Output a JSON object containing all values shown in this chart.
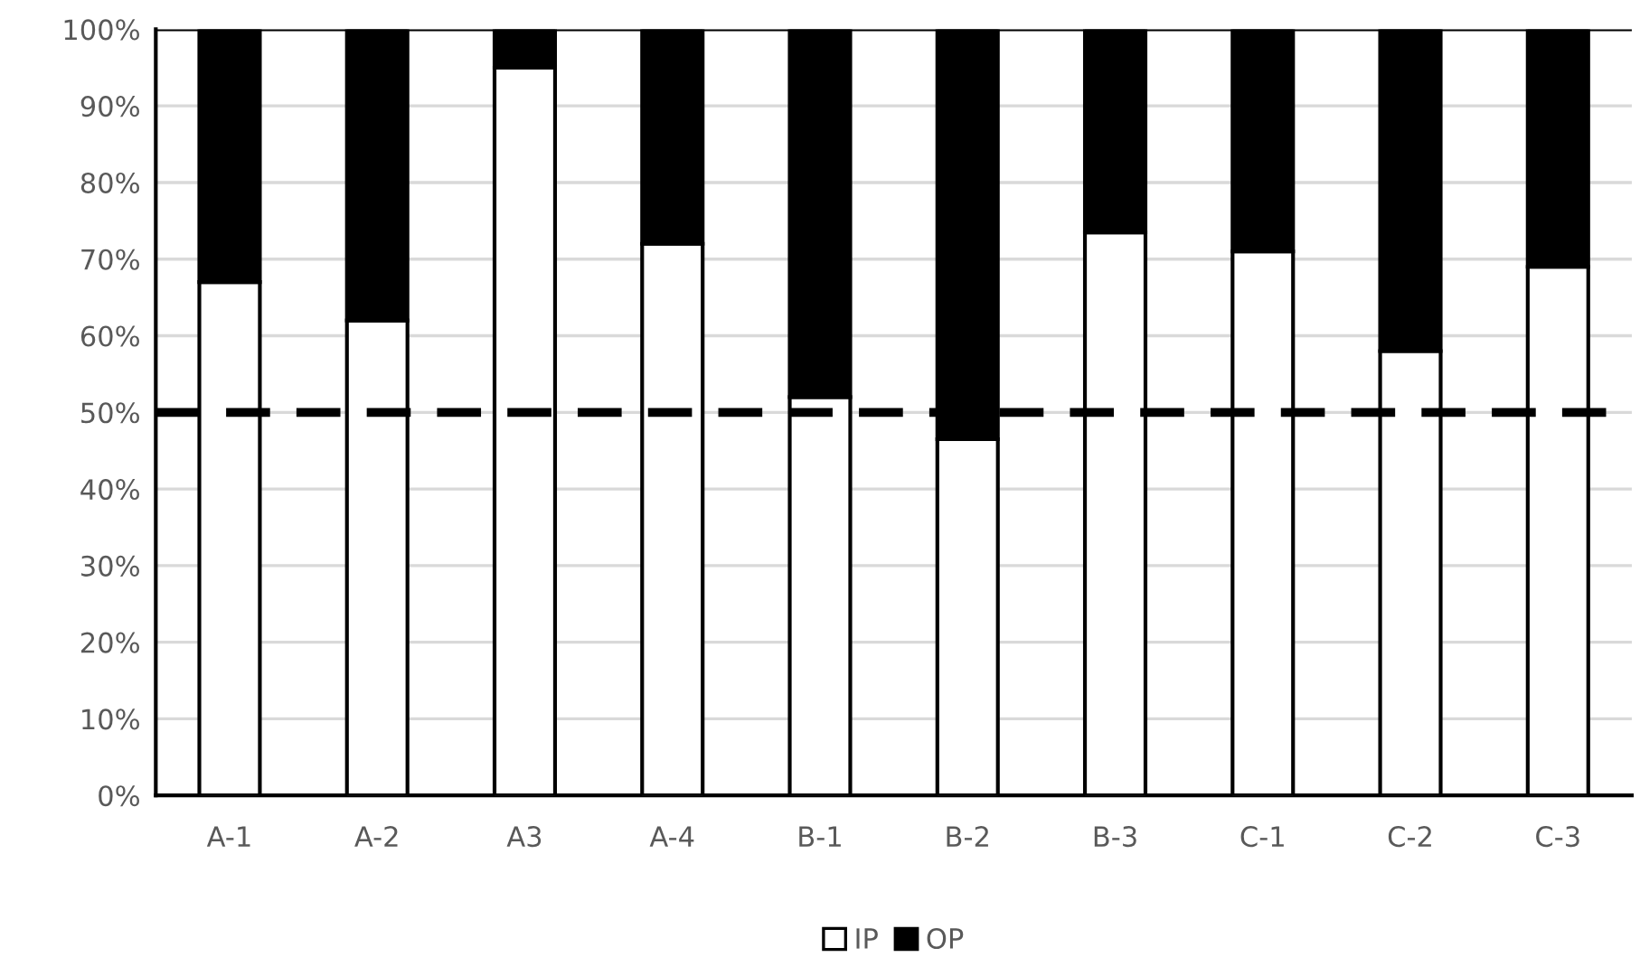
{
  "chart_data": {
    "type": "bar",
    "stacked": true,
    "categories": [
      "A-1",
      "A-2",
      "A3",
      "A-4",
      "B-1",
      "B-2",
      "B-3",
      "C-1",
      "C-2",
      "C-3"
    ],
    "series": [
      {
        "name": "IP",
        "color": "#ffffff",
        "values": [
          67,
          62,
          95,
          72,
          52,
          46.5,
          73.5,
          71,
          58,
          69
        ]
      },
      {
        "name": "OP",
        "color": "#000000",
        "values": [
          33,
          38,
          5,
          28,
          48,
          53.5,
          26.5,
          29,
          42,
          31
        ]
      }
    ],
    "ylim": [
      0,
      100
    ],
    "yticks": [
      {
        "value": 0,
        "label": "0%"
      },
      {
        "value": 10,
        "label": "10%"
      },
      {
        "value": 20,
        "label": "20%"
      },
      {
        "value": 30,
        "label": "30%"
      },
      {
        "value": 40,
        "label": "40%"
      },
      {
        "value": 50,
        "label": "50%"
      },
      {
        "value": 60,
        "label": "60%"
      },
      {
        "value": 70,
        "label": "70%"
      },
      {
        "value": 80,
        "label": "80%"
      },
      {
        "value": 90,
        "label": "90%"
      },
      {
        "value": 100,
        "label": "100%"
      }
    ],
    "ref_lines": [
      {
        "axis": "y",
        "value": 50,
        "color": "#000000",
        "line_style": "dashed"
      }
    ],
    "grid": "y",
    "legend": "bottom"
  }
}
